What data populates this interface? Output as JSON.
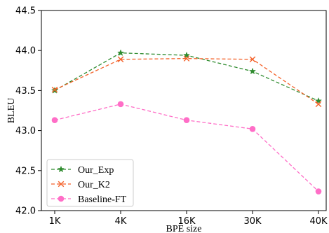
{
  "chart_data": {
    "type": "line",
    "title": "",
    "xlabel": "BPE size",
    "ylabel": "BLEU",
    "categories": [
      "1K",
      "4K",
      "16K",
      "30K",
      "40K"
    ],
    "ylim": [
      42.0,
      44.5
    ],
    "yticks": [
      "42.0",
      "42.5",
      "43.0",
      "43.5",
      "44.0",
      "44.5"
    ],
    "grid": false,
    "legend_position": "bottom-left",
    "series": [
      {
        "name": "Our_Exp",
        "values": [
          43.5,
          43.97,
          43.94,
          43.74,
          43.37
        ],
        "color": "#2e8b2e",
        "marker": "star",
        "dash": "dashed"
      },
      {
        "name": "Our_K2",
        "values": [
          43.51,
          43.89,
          43.9,
          43.89,
          43.33
        ],
        "color": "#f4622a",
        "marker": "x",
        "dash": "dashed"
      },
      {
        "name": "Baseline-FT",
        "values": [
          43.13,
          43.33,
          43.13,
          43.02,
          42.24
        ],
        "color": "#ff6ec7",
        "marker": "circle",
        "dash": "dashed"
      }
    ]
  }
}
